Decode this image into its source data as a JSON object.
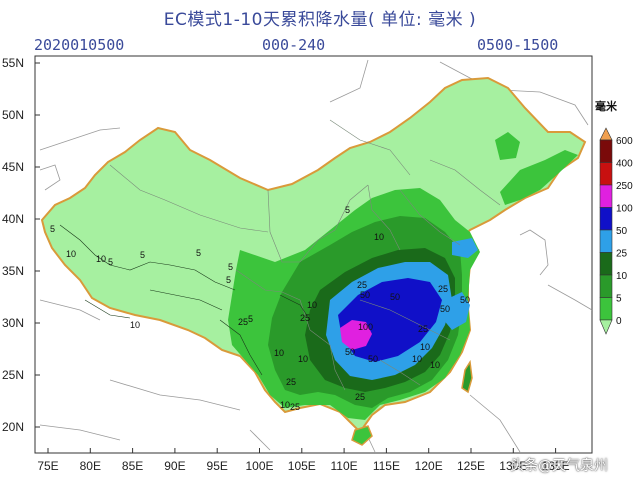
{
  "header": {
    "title": "EC模式1-10天累积降水量( 单位: 毫米 )",
    "run_time": "2020010500",
    "forecast_hours": "000-240",
    "valid_window": "0500-1500"
  },
  "axes": {
    "lon_ticks": [
      "75E",
      "80E",
      "85E",
      "90E",
      "95E",
      "100E",
      "105E",
      "110E",
      "115E",
      "120E",
      "125E",
      "130E",
      "135E"
    ],
    "lat_ticks": [
      "55N",
      "50N",
      "45N",
      "40N",
      "35N",
      "30N",
      "25N",
      "20N"
    ]
  },
  "legend": {
    "unit": "毫米",
    "levels": [
      "0",
      "5",
      "10",
      "25",
      "50",
      "100",
      "250",
      "400",
      "600"
    ],
    "colors": [
      "#a6f0a0",
      "#3cc43c",
      "#2a9a2a",
      "#1a6a1a",
      "#2ea0e8",
      "#1010c8",
      "#e020e0",
      "#c81010",
      "#7a0a0a",
      "#f0a050"
    ]
  },
  "contour_labels": [
    "5",
    "10",
    "10",
    "5",
    "5",
    "5",
    "5",
    "5",
    "10",
    "5",
    "10",
    "25",
    "10",
    "25",
    "25",
    "50",
    "100",
    "50",
    "25",
    "50",
    "25",
    "50",
    "10",
    "25",
    "10",
    "25",
    "10",
    "5",
    "10",
    "50",
    "50",
    "10",
    "10",
    "25"
  ],
  "watermark": "头条@天气泉州"
}
